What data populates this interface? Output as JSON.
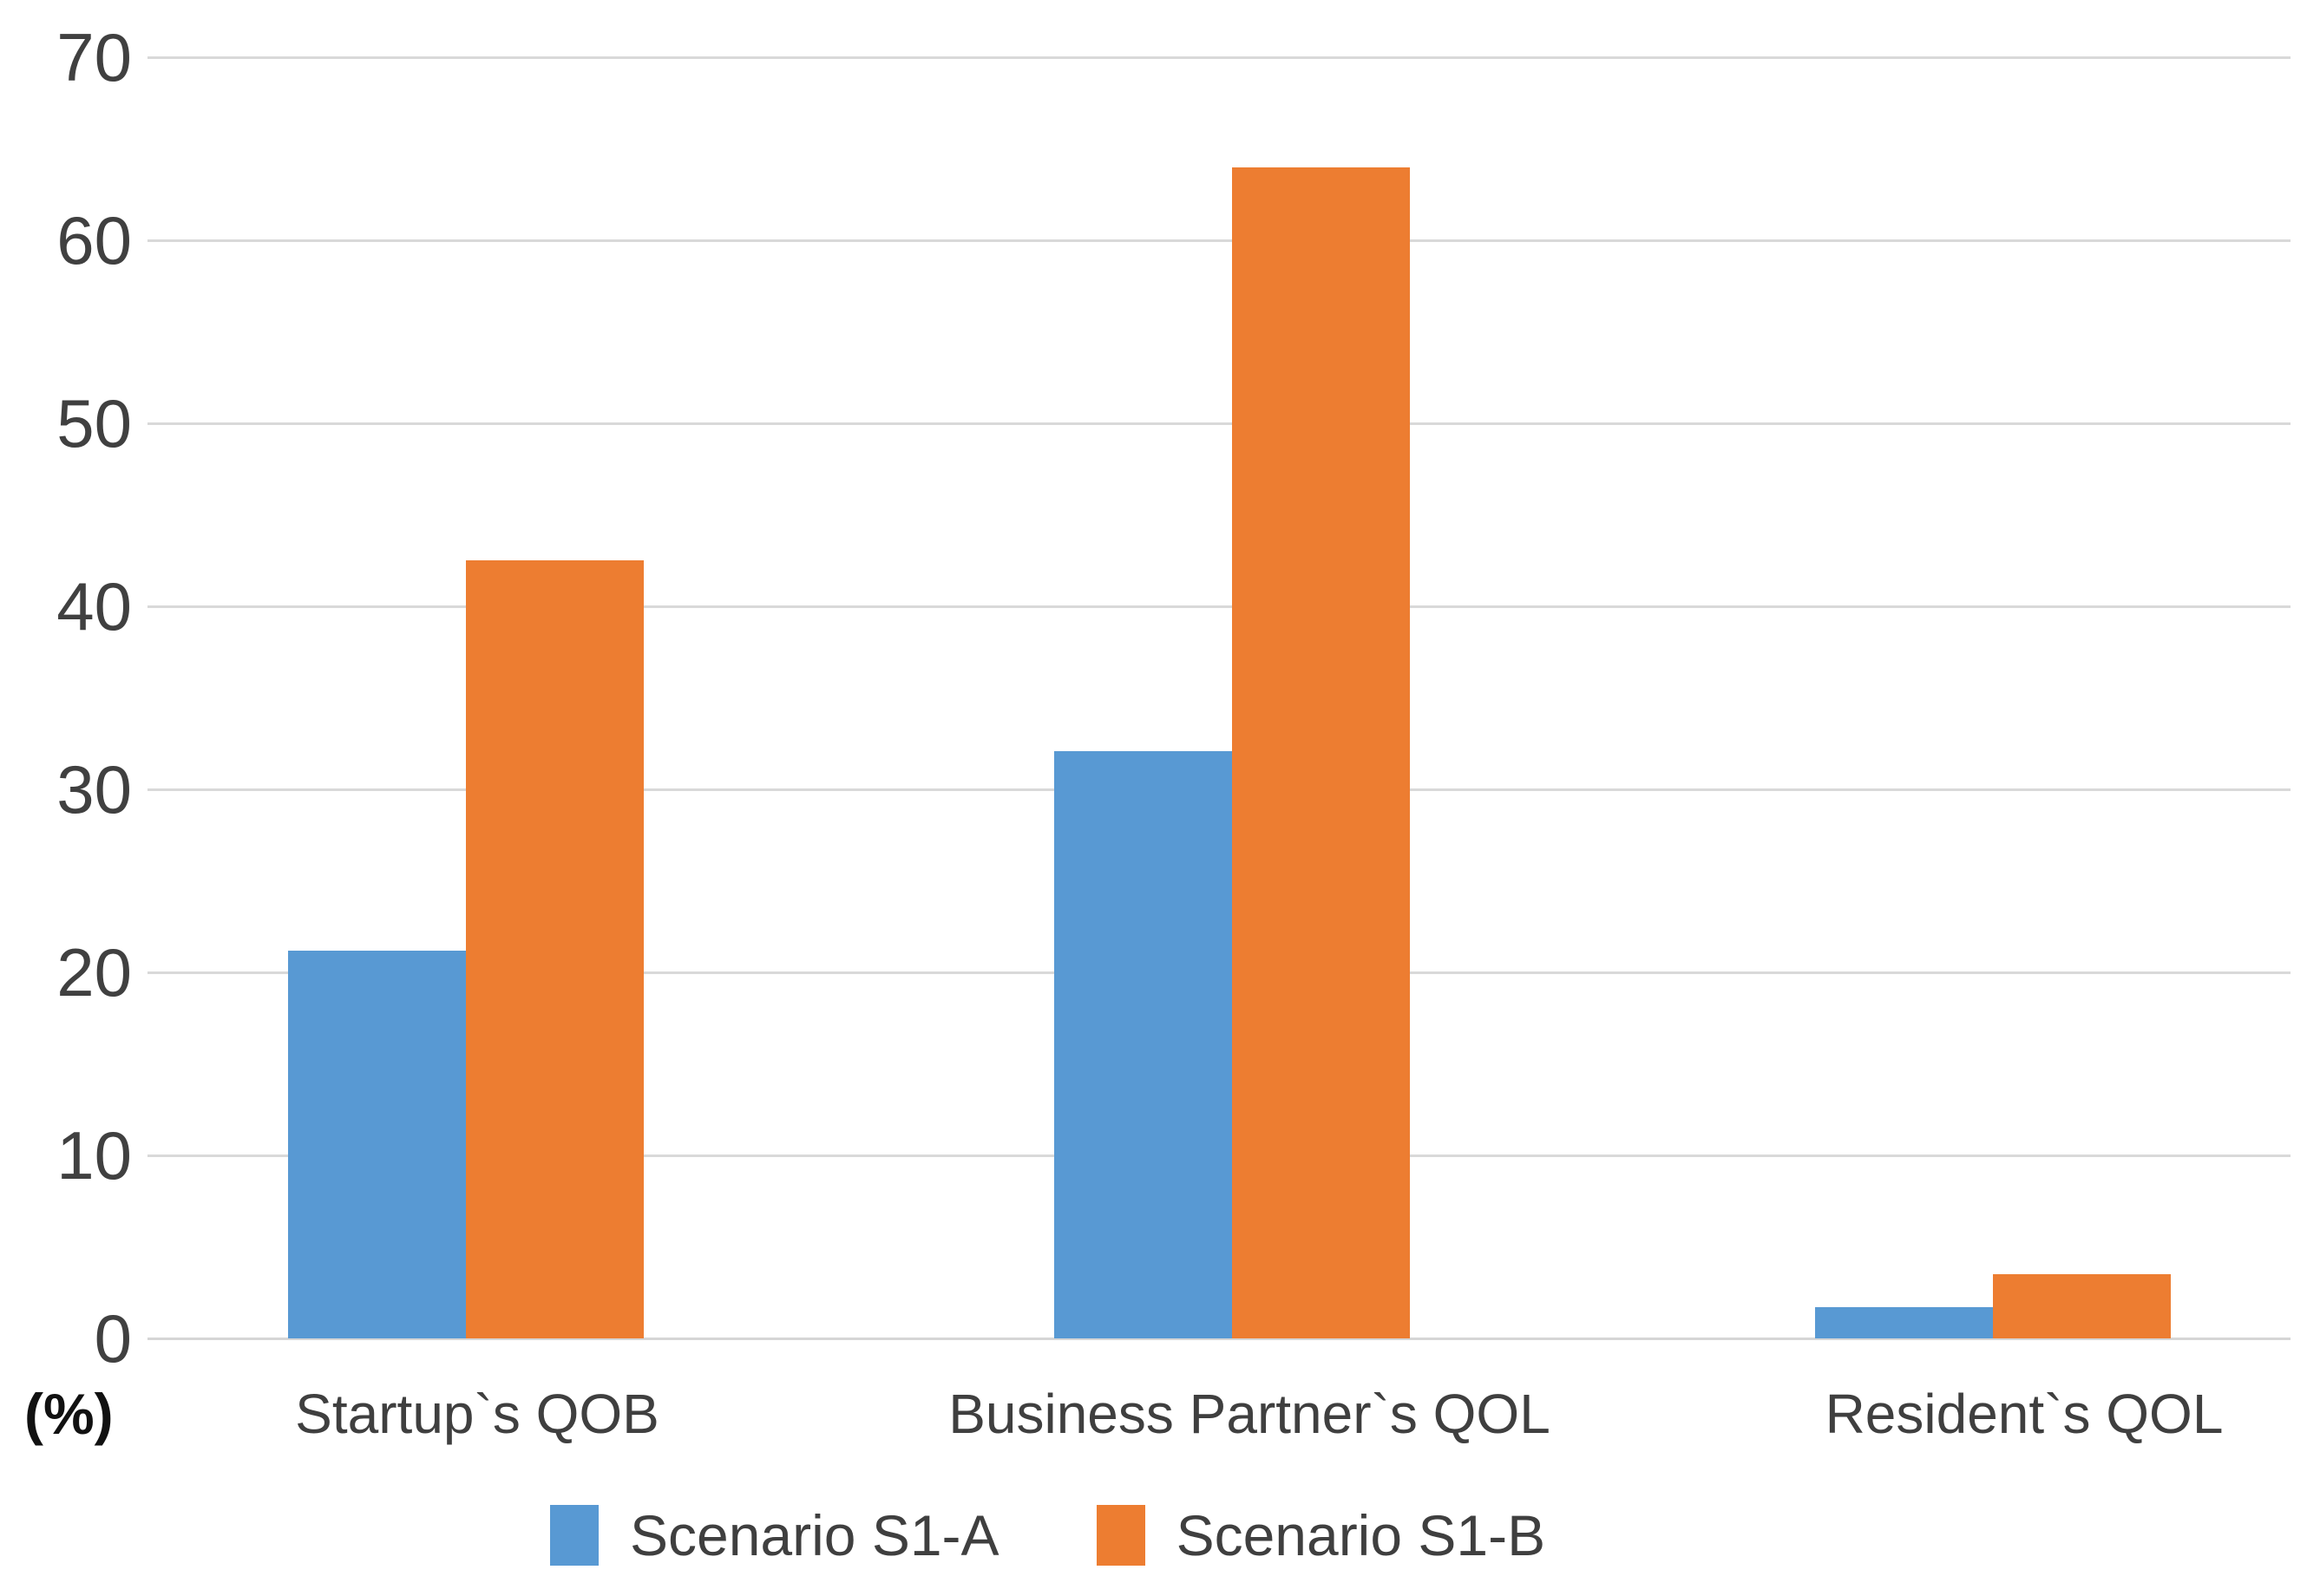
{
  "chart_data": {
    "type": "bar",
    "title": "",
    "categories": [
      "Startup`s QOB",
      "Business Partner`s QOL",
      "Resident`s QOL"
    ],
    "series": [
      {
        "name": "Scenario S1-A",
        "color": "#5899D3",
        "values": [
          21.2,
          32.1,
          1.7
        ]
      },
      {
        "name": "Scenario S1-B",
        "color": "#ED7D31",
        "values": [
          42.5,
          64.0,
          3.5
        ]
      }
    ],
    "xlabel": "",
    "ylabel": "(%)",
    "ylim": [
      0,
      70
    ],
    "yticks": [
      0,
      10,
      20,
      30,
      40,
      50,
      60,
      70
    ],
    "grid": true,
    "gridline_color": "#d9d9d9",
    "background_color": "#ffffff",
    "tick_label_color": "#404040",
    "category_label_color": "#3f3f3f",
    "legend_position": "bottom"
  }
}
